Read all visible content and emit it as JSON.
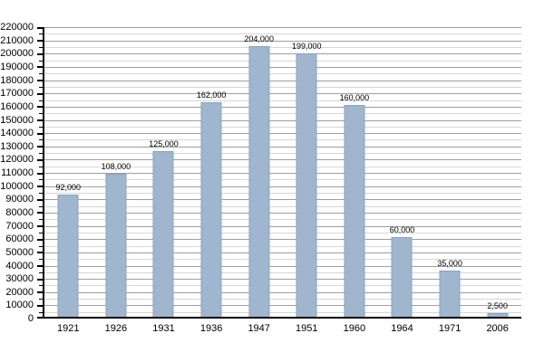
{
  "chart_data": {
    "type": "bar",
    "title": "",
    "xlabel": "",
    "ylabel": "",
    "categories": [
      "1921",
      "1926",
      "1931",
      "1936",
      "1947",
      "1951",
      "1960",
      "1964",
      "1971",
      "2006"
    ],
    "values": [
      92000,
      108000,
      125000,
      162000,
      204000,
      199000,
      160000,
      60000,
      35000,
      2500
    ],
    "value_labels": [
      "92,000",
      "108,000",
      "125,000",
      "162,000",
      "204,000",
      "199,000",
      "160,000",
      "60,000",
      "35,000",
      "2,500"
    ],
    "ylim": [
      0,
      220000
    ],
    "y_major_step": 10000,
    "y_minor_step": 5000,
    "y_tick_labels": [
      "0",
      "10000",
      "20000",
      "30000",
      "40000",
      "50000",
      "60000",
      "70000",
      "80000",
      "90000",
      "100000",
      "110000",
      "120000",
      "130000",
      "140000",
      "150000",
      "160000",
      "170000",
      "180000",
      "190000",
      "200000",
      "210000",
      "220000"
    ],
    "grid": true,
    "legend": false,
    "colors": {
      "background": "#ffffff",
      "bar_fill": "#a0b5ce",
      "bar_border": "#8aa2be",
      "major_gridline": "#9e9e9e",
      "minor_gridline": "#d6d6d6",
      "axis": "#000000",
      "text": "#000000"
    }
  }
}
